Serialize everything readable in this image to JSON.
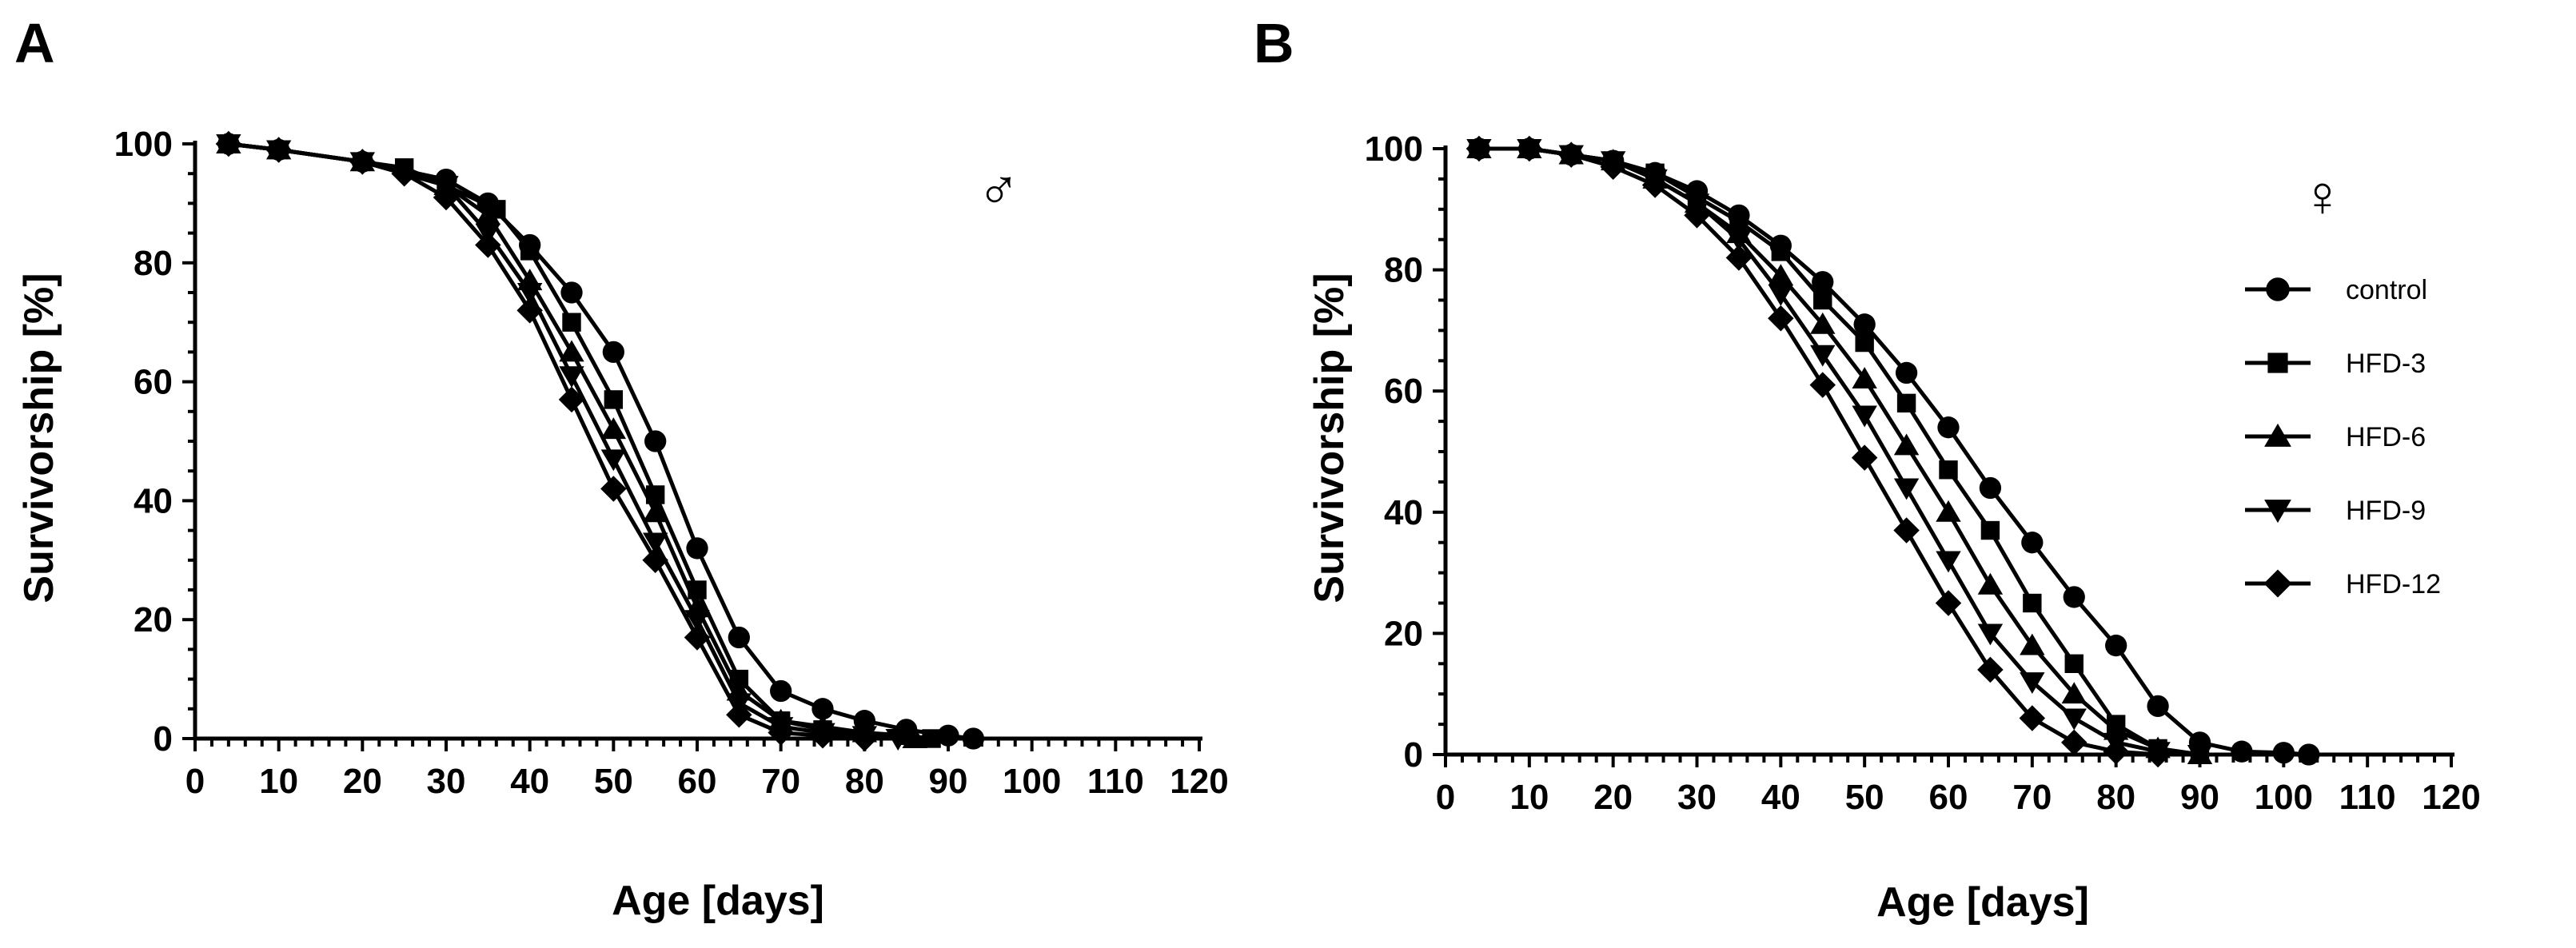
{
  "figure": {
    "panels": [
      {
        "letter": "A",
        "sex_symbol": "♂"
      },
      {
        "letter": "B",
        "sex_symbol": "♀"
      }
    ],
    "legend": [
      {
        "label": "control",
        "marker": "circle"
      },
      {
        "label": "HFD-3",
        "marker": "square"
      },
      {
        "label": "HFD-6",
        "marker": "triangle-up"
      },
      {
        "label": "HFD-9",
        "marker": "triangle-down"
      },
      {
        "label": "HFD-12",
        "marker": "diamond"
      }
    ]
  },
  "chart_data": [
    {
      "type": "line",
      "panel": "A",
      "xlabel": "Age [days]",
      "ylabel": "Survivorship [%]",
      "xlim": [
        0,
        120
      ],
      "ylim": [
        0,
        100
      ],
      "xticks": [
        "0",
        "10",
        "20",
        "30",
        "40",
        "50",
        "60",
        "70",
        "80",
        "90",
        "100",
        "110",
        "120"
      ],
      "yticks": [
        "0",
        "20",
        "40",
        "60",
        "80",
        "100"
      ],
      "grid": false,
      "series": [
        {
          "name": "control",
          "marker": "circle",
          "points": [
            [
              4,
              100
            ],
            [
              10,
              99
            ],
            [
              20,
              97
            ],
            [
              30,
              94
            ],
            [
              35,
              90
            ],
            [
              40,
              83
            ],
            [
              45,
              75
            ],
            [
              50,
              65
            ],
            [
              55,
              50
            ],
            [
              60,
              32
            ],
            [
              65,
              17
            ],
            [
              70,
              8
            ],
            [
              75,
              5
            ],
            [
              80,
              3
            ],
            [
              85,
              1.5
            ],
            [
              90,
              0.5
            ],
            [
              93,
              0
            ]
          ]
        },
        {
          "name": "HFD-3",
          "marker": "square",
          "points": [
            [
              4,
              100
            ],
            [
              10,
              99
            ],
            [
              20,
              97
            ],
            [
              25,
              96
            ],
            [
              30,
              93
            ],
            [
              36,
              89
            ],
            [
              40,
              82
            ],
            [
              45,
              70
            ],
            [
              50,
              57
            ],
            [
              55,
              41
            ],
            [
              60,
              25
            ],
            [
              65,
              10
            ],
            [
              70,
              3
            ],
            [
              75,
              1.5
            ],
            [
              80,
              1
            ],
            [
              85,
              0.5
            ],
            [
              88,
              0
            ]
          ]
        },
        {
          "name": "HFD-6",
          "marker": "triangle-up",
          "points": [
            [
              4,
              100
            ],
            [
              10,
              99
            ],
            [
              20,
              97
            ],
            [
              30,
              93
            ],
            [
              35,
              88
            ],
            [
              40,
              77
            ],
            [
              45,
              65
            ],
            [
              50,
              52
            ],
            [
              55,
              38
            ],
            [
              60,
              22
            ],
            [
              65,
              8
            ],
            [
              70,
              3
            ],
            [
              75,
              2
            ],
            [
              80,
              1
            ],
            [
              86,
              0
            ]
          ]
        },
        {
          "name": "HFD-9",
          "marker": "triangle-down",
          "points": [
            [
              4,
              100
            ],
            [
              10,
              99
            ],
            [
              20,
              97
            ],
            [
              30,
              93
            ],
            [
              35,
              85
            ],
            [
              40,
              75
            ],
            [
              45,
              61
            ],
            [
              50,
              47
            ],
            [
              55,
              33
            ],
            [
              60,
              20
            ],
            [
              65,
              6
            ],
            [
              70,
              2
            ],
            [
              75,
              1
            ],
            [
              80,
              0.5
            ],
            [
              84,
              0
            ]
          ]
        },
        {
          "name": "HFD-12",
          "marker": "diamond",
          "points": [
            [
              4,
              100
            ],
            [
              10,
              99
            ],
            [
              20,
              97
            ],
            [
              25,
              95
            ],
            [
              30,
              91
            ],
            [
              35,
              83
            ],
            [
              40,
              72
            ],
            [
              45,
              57
            ],
            [
              50,
              42
            ],
            [
              55,
              30
            ],
            [
              60,
              17
            ],
            [
              65,
              4
            ],
            [
              70,
              1
            ],
            [
              75,
              0.5
            ],
            [
              80,
              0
            ]
          ]
        }
      ]
    },
    {
      "type": "line",
      "panel": "B",
      "xlabel": "Age [days]",
      "ylabel": "Survivorship [%]",
      "xlim": [
        0,
        120
      ],
      "ylim": [
        0,
        100
      ],
      "xticks": [
        "0",
        "10",
        "20",
        "30",
        "40",
        "50",
        "60",
        "70",
        "80",
        "90",
        "100",
        "110",
        "120"
      ],
      "yticks": [
        "0",
        "20",
        "40",
        "60",
        "80",
        "100"
      ],
      "grid": false,
      "series": [
        {
          "name": "control",
          "marker": "circle",
          "points": [
            [
              4,
              100
            ],
            [
              10,
              100
            ],
            [
              15,
              99
            ],
            [
              20,
              98
            ],
            [
              25,
              96
            ],
            [
              30,
              93
            ],
            [
              35,
              89
            ],
            [
              40,
              84
            ],
            [
              45,
              78
            ],
            [
              50,
              71
            ],
            [
              55,
              63
            ],
            [
              60,
              54
            ],
            [
              65,
              44
            ],
            [
              70,
              35
            ],
            [
              75,
              26
            ],
            [
              80,
              18
            ],
            [
              85,
              8
            ],
            [
              90,
              2
            ],
            [
              95,
              0.5
            ],
            [
              100,
              0.3
            ],
            [
              103,
              0
            ]
          ]
        },
        {
          "name": "HFD-3",
          "marker": "square",
          "points": [
            [
              4,
              100
            ],
            [
              10,
              100
            ],
            [
              15,
              99
            ],
            [
              20,
              98
            ],
            [
              25,
              96
            ],
            [
              30,
              92
            ],
            [
              35,
              88
            ],
            [
              40,
              83
            ],
            [
              45,
              75
            ],
            [
              50,
              68
            ],
            [
              55,
              58
            ],
            [
              60,
              47
            ],
            [
              65,
              37
            ],
            [
              70,
              25
            ],
            [
              75,
              15
            ],
            [
              80,
              5
            ],
            [
              85,
              1
            ],
            [
              90,
              0
            ]
          ]
        },
        {
          "name": "HFD-6",
          "marker": "triangle-up",
          "points": [
            [
              4,
              100
            ],
            [
              10,
              100
            ],
            [
              15,
              99
            ],
            [
              20,
              98
            ],
            [
              25,
              95
            ],
            [
              30,
              91
            ],
            [
              35,
              86
            ],
            [
              40,
              79
            ],
            [
              45,
              71
            ],
            [
              50,
              62
            ],
            [
              55,
              51
            ],
            [
              60,
              40
            ],
            [
              65,
              28
            ],
            [
              70,
              18
            ],
            [
              75,
              10
            ],
            [
              80,
              4
            ],
            [
              85,
              1
            ],
            [
              90,
              0
            ]
          ]
        },
        {
          "name": "HFD-9",
          "marker": "triangle-down",
          "points": [
            [
              4,
              100
            ],
            [
              10,
              100
            ],
            [
              15,
              99
            ],
            [
              20,
              98
            ],
            [
              25,
              95
            ],
            [
              30,
              91
            ],
            [
              35,
              85
            ],
            [
              40,
              76
            ],
            [
              45,
              66
            ],
            [
              50,
              56
            ],
            [
              55,
              44
            ],
            [
              60,
              32
            ],
            [
              65,
              20
            ],
            [
              70,
              12
            ],
            [
              75,
              6
            ],
            [
              80,
              2
            ],
            [
              85,
              0.5
            ],
            [
              90,
              0
            ]
          ]
        },
        {
          "name": "HFD-12",
          "marker": "diamond",
          "points": [
            [
              4,
              100
            ],
            [
              10,
              100
            ],
            [
              15,
              99
            ],
            [
              20,
              97
            ],
            [
              25,
              94
            ],
            [
              30,
              89
            ],
            [
              35,
              82
            ],
            [
              40,
              72
            ],
            [
              45,
              61
            ],
            [
              50,
              49
            ],
            [
              55,
              37
            ],
            [
              60,
              25
            ],
            [
              65,
              14
            ],
            [
              70,
              6
            ],
            [
              75,
              2
            ],
            [
              80,
              0.5
            ],
            [
              85,
              0
            ]
          ]
        }
      ]
    }
  ]
}
